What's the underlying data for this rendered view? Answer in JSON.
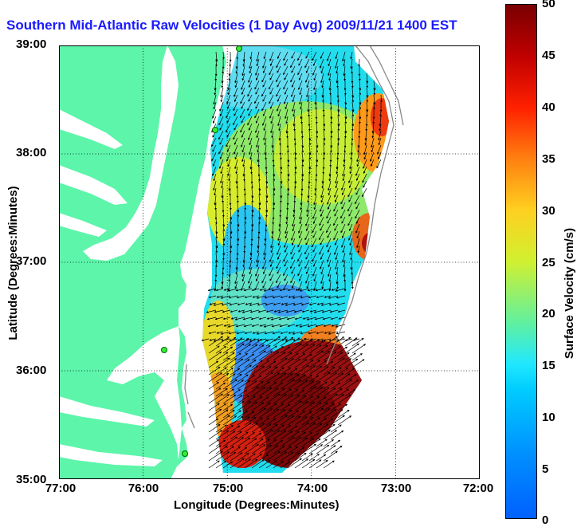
{
  "title": "Southern Mid-Atlantic Raw Velocities (1 Day Avg) 2009/11/21 1400 EST",
  "xaxis": {
    "label": "Longitude (Degrees:Minutes)",
    "ticks": [
      "77:00",
      "76:00",
      "75:00",
      "74:00",
      "73:00",
      "72:00"
    ]
  },
  "yaxis": {
    "label": "Latitude (Degrees:Minutes)",
    "ticks": [
      "39:00",
      "38:00",
      "37:00",
      "36:00",
      "35:00"
    ]
  },
  "colorbar": {
    "label": "Surface Velocity (cm/s)",
    "ticks": [
      "50",
      "45",
      "40",
      "35",
      "30",
      "25",
      "20",
      "15",
      "10",
      "5",
      "0"
    ],
    "range": [
      0,
      50
    ]
  },
  "colors": {
    "land": "#5cf5aa",
    "title": "#1a1aff",
    "water": "#ffffff"
  },
  "map_extent": {
    "lon": [
      -77,
      -72
    ],
    "lat": [
      35,
      39
    ]
  }
}
